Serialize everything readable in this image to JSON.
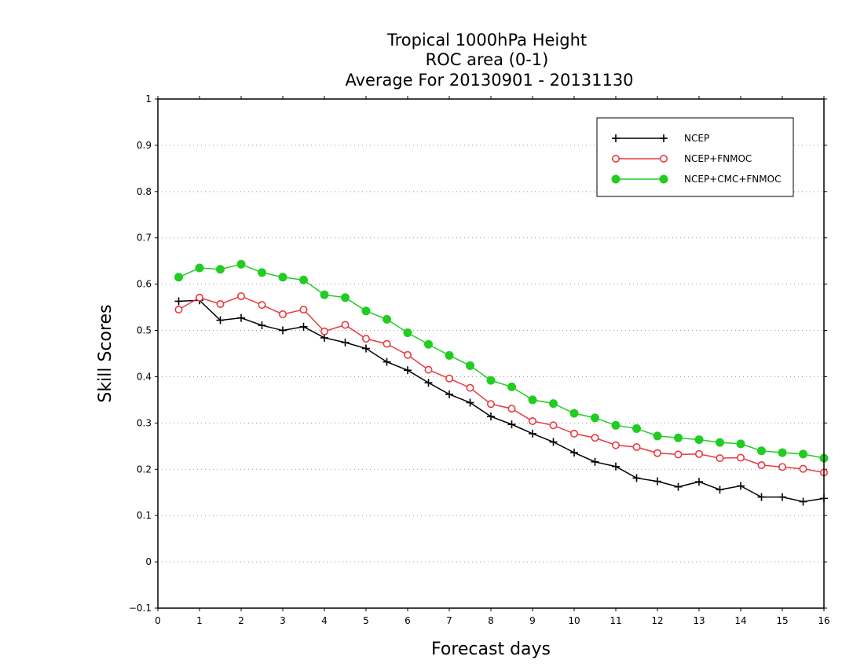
{
  "chart_data": {
    "type": "line",
    "title": [
      "Tropical 1000hPa Height",
      "ROC area (0-1)",
      "Average For 20130901 - 20131130"
    ],
    "xlabel": "Forecast days",
    "ylabel": "Skill Scores",
    "xlim": [
      0,
      16
    ],
    "ylim": [
      -0.1,
      1
    ],
    "xticks": [
      "0",
      "1",
      "2",
      "3",
      "4",
      "5",
      "6",
      "7",
      "8",
      "9",
      "10",
      "11",
      "12",
      "13",
      "14",
      "15",
      "16"
    ],
    "yticks": [
      "−0.1",
      "0",
      "0.1",
      "0.2",
      "0.3",
      "0.4",
      "0.5",
      "0.6",
      "0.7",
      "0.8",
      "0.9",
      "1"
    ],
    "grid": "horizontal dotted",
    "legend_position": "top-right",
    "x": [
      0.5,
      1,
      1.5,
      2,
      2.5,
      3,
      3.5,
      4,
      4.5,
      5,
      5.5,
      6,
      6.5,
      7,
      7.5,
      8,
      8.5,
      9,
      9.5,
      10,
      10.5,
      11,
      11.5,
      12,
      12.5,
      13,
      13.5,
      14,
      14.5,
      15,
      15.5,
      16
    ],
    "series": [
      {
        "name": "NCEP",
        "color": "#000000",
        "marker": "plus",
        "values": [
          0.563,
          0.565,
          0.522,
          0.527,
          0.511,
          0.5,
          0.508,
          0.484,
          0.474,
          0.461,
          0.432,
          0.414,
          0.387,
          0.362,
          0.344,
          0.314,
          0.297,
          0.277,
          0.259,
          0.236,
          0.216,
          0.206,
          0.181,
          0.174,
          0.162,
          0.173,
          0.156,
          0.164,
          0.14,
          0.14,
          0.13,
          0.137
        ]
      },
      {
        "name": "NCEP+FNMOC",
        "color": "#e8393f",
        "marker": "open-circle",
        "values": [
          0.545,
          0.571,
          0.557,
          0.574,
          0.555,
          0.535,
          0.545,
          0.498,
          0.512,
          0.482,
          0.471,
          0.447,
          0.415,
          0.396,
          0.376,
          0.341,
          0.331,
          0.304,
          0.295,
          0.277,
          0.268,
          0.252,
          0.248,
          0.235,
          0.232,
          0.233,
          0.224,
          0.225,
          0.209,
          0.205,
          0.201,
          0.193
        ]
      },
      {
        "name": "NCEP+CMC+FNMOC",
        "color": "#22cc22",
        "marker": "filled-circle",
        "values": [
          0.615,
          0.635,
          0.632,
          0.643,
          0.625,
          0.615,
          0.609,
          0.577,
          0.571,
          0.542,
          0.524,
          0.495,
          0.47,
          0.446,
          0.424,
          0.392,
          0.378,
          0.35,
          0.342,
          0.321,
          0.311,
          0.295,
          0.288,
          0.272,
          0.268,
          0.264,
          0.258,
          0.255,
          0.24,
          0.236,
          0.233,
          0.224
        ]
      }
    ]
  }
}
